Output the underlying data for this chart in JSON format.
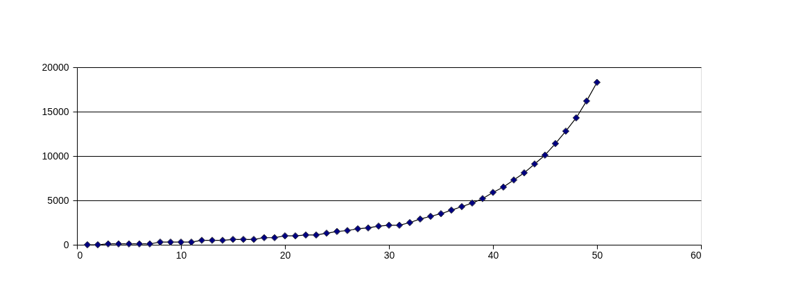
{
  "chart_data": {
    "type": "line",
    "x": [
      1,
      2,
      3,
      4,
      5,
      6,
      7,
      8,
      9,
      10,
      11,
      12,
      13,
      14,
      15,
      16,
      17,
      18,
      19,
      20,
      21,
      22,
      23,
      24,
      25,
      26,
      27,
      28,
      29,
      30,
      31,
      32,
      33,
      34,
      35,
      36,
      37,
      38,
      39,
      40,
      41,
      42,
      43,
      44,
      45,
      46,
      47,
      48,
      49,
      50
    ],
    "series": [
      {
        "color": "#000080",
        "values": [
          0,
          0,
          100,
          100,
          100,
          100,
          100,
          300,
          300,
          300,
          300,
          500,
          500,
          500,
          600,
          600,
          600,
          800,
          800,
          1000,
          1000,
          1100,
          1100,
          1300,
          1500,
          1600,
          1800,
          1900,
          2100,
          2200,
          2200,
          2500,
          2900,
          3200,
          3500,
          3900,
          4300,
          4700,
          5200,
          5900,
          6500,
          7300,
          8100,
          9100,
          10100,
          11400,
          12800,
          14300,
          16200,
          18300
        ]
      }
    ],
    "xlim": [
      0,
      60
    ],
    "xticks": [
      0,
      10,
      20,
      30,
      40,
      50,
      60
    ],
    "ylim": [
      0,
      20000
    ],
    "yticks": [
      0,
      5000,
      10000,
      15000,
      20000
    ],
    "grid": "y",
    "marker": "diamond",
    "legend": false
  }
}
